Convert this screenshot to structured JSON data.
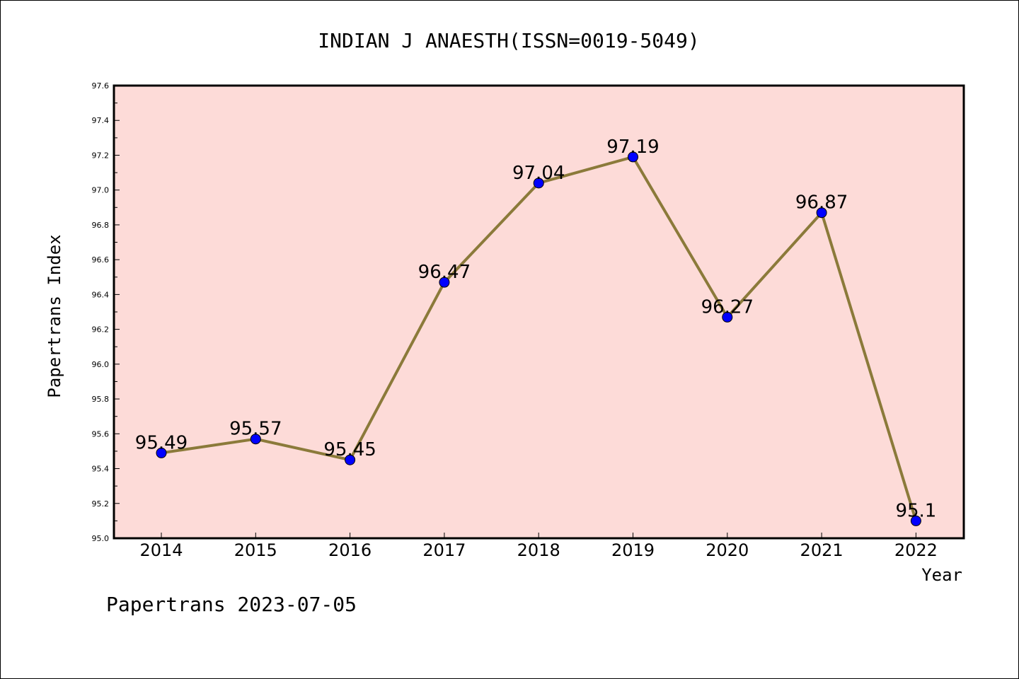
{
  "chart_data": {
    "type": "line",
    "title": "INDIAN J ANAESTH(ISSN=0019-5049)",
    "xlabel": "Year",
    "ylabel": "Papertrans Index",
    "categories": [
      "2014",
      "2015",
      "2016",
      "2017",
      "2018",
      "2019",
      "2020",
      "2021",
      "2022"
    ],
    "series": [
      {
        "values": [
          95.49,
          95.57,
          95.45,
          96.47,
          97.04,
          97.19,
          96.27,
          96.87,
          95.1
        ],
        "data_labels": [
          "95.49",
          "95.57",
          "95.45",
          "96.47",
          "97.04",
          "97.19",
          "96.27",
          "96.87",
          "95.1"
        ]
      }
    ],
    "ylim": [
      95.0,
      97.6
    ],
    "yticks": [
      "95.0",
      "95.2",
      "95.4",
      "95.6",
      "95.8",
      "96.0",
      "96.2",
      "96.4",
      "96.6",
      "96.8",
      "97.0",
      "97.2",
      "97.4",
      "97.6"
    ],
    "grid": false,
    "colors": {
      "plot_background": "#fddbd8",
      "line": "#8b7a3a",
      "marker": "#0000ff",
      "axis": "#000000"
    }
  },
  "footer": {
    "text": "Papertrans 2023-07-05"
  }
}
